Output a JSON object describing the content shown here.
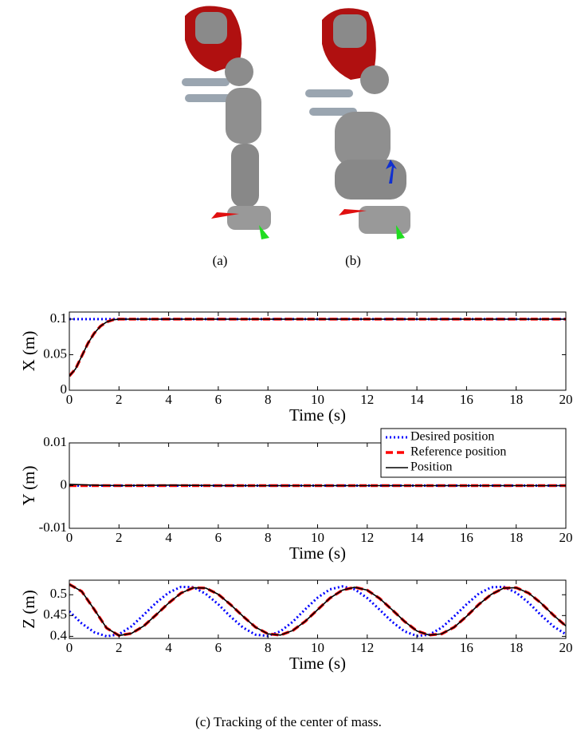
{
  "figure": {
    "subfigure_labels": [
      "(a)",
      "(b)"
    ],
    "caption": "(c) Tracking of the center of mass."
  },
  "chart_data": [
    {
      "type": "line",
      "xlabel": "Time (s)",
      "ylabel": "X (m)",
      "x": [
        0,
        0.25,
        0.5,
        0.75,
        1,
        1.25,
        1.5,
        1.75,
        2,
        4,
        6,
        8,
        10,
        12,
        14,
        16,
        18,
        20
      ],
      "series": [
        {
          "color": "#0000ff",
          "dash": "dotted",
          "values": [
            0.1,
            0.1,
            0.1,
            0.1,
            0.1,
            0.1,
            0.1,
            0.1,
            0.1,
            0.1,
            0.1,
            0.1,
            0.1,
            0.1,
            0.1,
            0.1,
            0.1,
            0.1
          ]
        },
        {
          "color": "#ff0000",
          "dash": "dashed",
          "values": [
            0.02,
            0.03,
            0.048,
            0.066,
            0.08,
            0.09,
            0.096,
            0.099,
            0.1,
            0.1,
            0.1,
            0.1,
            0.1,
            0.1,
            0.1,
            0.1,
            0.1,
            0.1
          ]
        },
        {
          "color": "#000000",
          "dash": "solid",
          "values": [
            0.02,
            0.03,
            0.048,
            0.066,
            0.08,
            0.09,
            0.096,
            0.099,
            0.1,
            0.1,
            0.1,
            0.1,
            0.1,
            0.1,
            0.1,
            0.1,
            0.1,
            0.1
          ]
        }
      ],
      "xlim": [
        0,
        20
      ],
      "xticks": [
        0,
        2,
        4,
        6,
        8,
        10,
        12,
        14,
        16,
        18,
        20
      ],
      "ylim": [
        0,
        0.11
      ],
      "yticks": [
        0,
        0.05,
        0.1
      ]
    },
    {
      "type": "line",
      "xlabel": "Time (s)",
      "ylabel": "Y (m)",
      "legend": "upper right",
      "x": [
        0,
        0.5,
        1,
        2,
        4,
        6,
        8,
        10,
        12,
        14,
        16,
        18,
        20
      ],
      "series": [
        {
          "name": "Desired position",
          "color": "#0000ff",
          "dash": "dotted",
          "values": [
            0,
            0,
            0,
            0,
            0,
            0,
            0,
            0,
            0,
            0,
            0,
            0,
            0
          ]
        },
        {
          "name": "Reference position",
          "color": "#ff0000",
          "dash": "dashed",
          "values": [
            0,
            0,
            0,
            0,
            0,
            0,
            0,
            0,
            0,
            0,
            0,
            0,
            0
          ]
        },
        {
          "name": "Position",
          "color": "#000000",
          "dash": "solid",
          "values": [
            0.0003,
            0.0002,
            0.0001,
            0,
            0.0001,
            0,
            0,
            0,
            0,
            0,
            0,
            0,
            0
          ]
        }
      ],
      "xlim": [
        0,
        20
      ],
      "xticks": [
        0,
        2,
        4,
        6,
        8,
        10,
        12,
        14,
        16,
        18,
        20
      ],
      "ylim": [
        -0.01,
        0.01
      ],
      "yticks": [
        -0.01,
        0,
        0.01
      ]
    },
    {
      "type": "line",
      "xlabel": "Time (s)",
      "ylabel": "Z (m)",
      "x": [
        0,
        0.5,
        1,
        1.5,
        2,
        2.5,
        3,
        3.5,
        4,
        4.5,
        5,
        5.5,
        6,
        6.5,
        7,
        7.5,
        8,
        8.5,
        9,
        9.5,
        10,
        10.5,
        11,
        11.5,
        12,
        12.5,
        13,
        13.5,
        14,
        14.5,
        15,
        15.5,
        16,
        16.5,
        17,
        17.5,
        18,
        18.5,
        19,
        19.5,
        20
      ],
      "series": [
        {
          "color": "#0000ff",
          "dash": "dotted",
          "values": [
            0.46,
            0.431,
            0.41,
            0.4,
            0.405,
            0.424,
            0.452,
            0.481,
            0.505,
            0.519,
            0.518,
            0.502,
            0.477,
            0.447,
            0.421,
            0.404,
            0.401,
            0.412,
            0.435,
            0.465,
            0.493,
            0.513,
            0.52,
            0.513,
            0.492,
            0.464,
            0.435,
            0.412,
            0.401,
            0.404,
            0.421,
            0.448,
            0.477,
            0.503,
            0.518,
            0.519,
            0.505,
            0.481,
            0.451,
            0.424,
            0.405
          ]
        },
        {
          "color": "#ff0000",
          "dash": "dashed",
          "values": [
            0.525,
            0.508,
            0.465,
            0.42,
            0.402,
            0.407,
            0.425,
            0.452,
            0.48,
            0.504,
            0.517,
            0.516,
            0.501,
            0.476,
            0.448,
            0.422,
            0.406,
            0.403,
            0.414,
            0.436,
            0.464,
            0.492,
            0.511,
            0.518,
            0.511,
            0.491,
            0.464,
            0.436,
            0.413,
            0.403,
            0.406,
            0.422,
            0.448,
            0.477,
            0.501,
            0.516,
            0.517,
            0.504,
            0.48,
            0.451,
            0.425
          ]
        },
        {
          "color": "#000000",
          "dash": "solid",
          "values": [
            0.525,
            0.508,
            0.465,
            0.42,
            0.402,
            0.407,
            0.425,
            0.452,
            0.48,
            0.504,
            0.517,
            0.516,
            0.501,
            0.476,
            0.448,
            0.422,
            0.406,
            0.403,
            0.414,
            0.436,
            0.464,
            0.492,
            0.511,
            0.518,
            0.511,
            0.491,
            0.464,
            0.436,
            0.413,
            0.403,
            0.406,
            0.422,
            0.448,
            0.477,
            0.501,
            0.516,
            0.517,
            0.504,
            0.48,
            0.451,
            0.425
          ]
        }
      ],
      "xlim": [
        0,
        20
      ],
      "xticks": [
        0,
        2,
        4,
        6,
        8,
        10,
        12,
        14,
        16,
        18,
        20
      ],
      "ylim": [
        0.395,
        0.535
      ],
      "yticks": [
        0.4,
        0.45,
        0.5
      ]
    }
  ]
}
